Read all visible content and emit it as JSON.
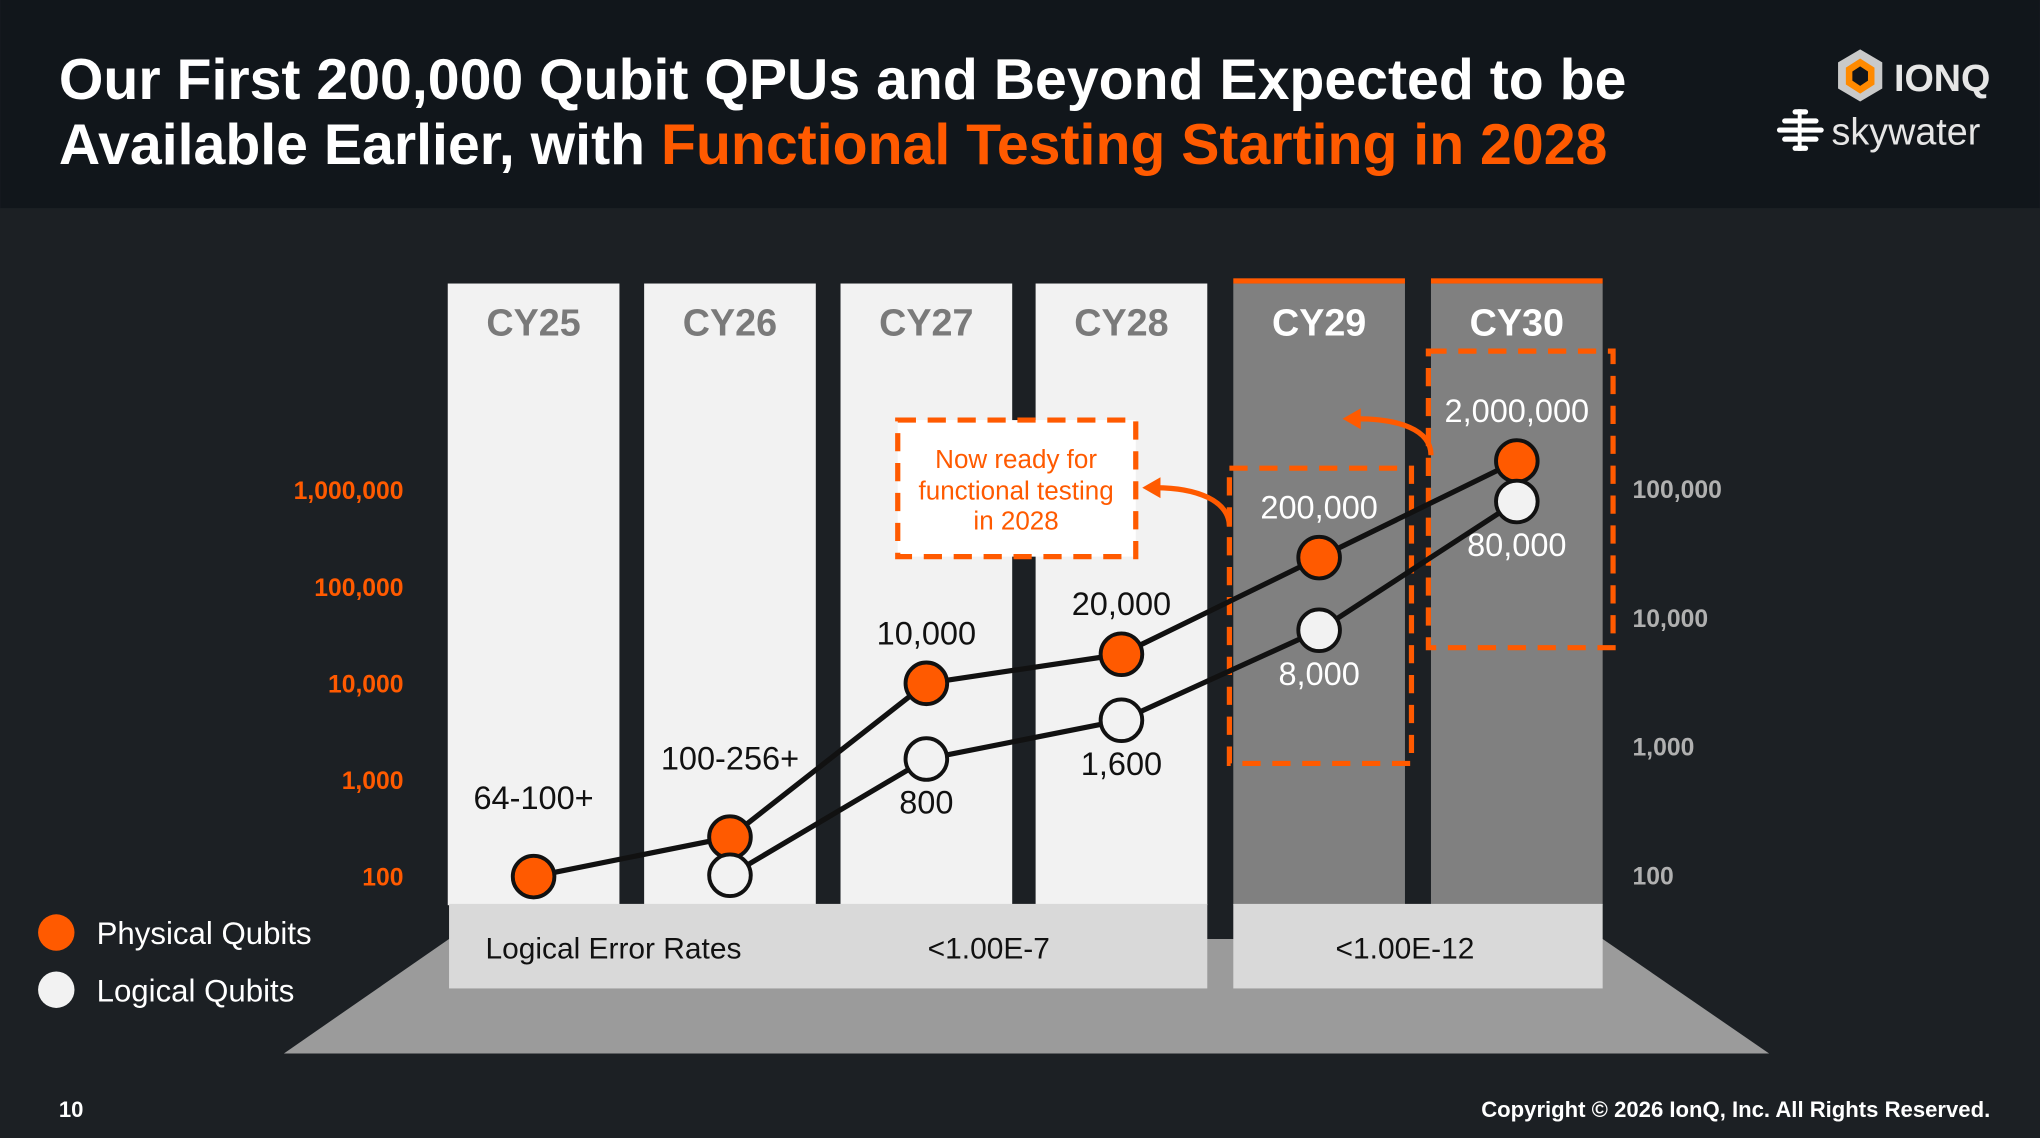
{
  "header": {
    "title_line1": "Our First 200,000 Qubit QPUs and Beyond Expected to be",
    "title_line2_plain": "Available Earlier, with ",
    "title_line2_highlight": "Functional Testing Starting in 2028",
    "logos": {
      "ionq": "IONQ",
      "skywater": "skywater"
    }
  },
  "colors": {
    "accent": "#ff5a00",
    "header_bg": "#11161b",
    "body_bg": "#1c2024",
    "column_light": "#f2f2f2",
    "column_dark": "#808080"
  },
  "chart_data": {
    "type": "line",
    "categories": [
      "CY25",
      "CY26",
      "CY27",
      "CY28",
      "CY29",
      "CY30"
    ],
    "left_axis": {
      "scale": "log",
      "ticks": [
        "100",
        "1,000",
        "10,000",
        "100,000",
        "1,000,000"
      ],
      "tick_values": [
        100,
        1000,
        10000,
        100000,
        1000000
      ]
    },
    "right_axis": {
      "scale": "log",
      "ticks": [
        "100",
        "1,000",
        "10,000",
        "100,000"
      ],
      "tick_values": [
        100,
        1000,
        10000,
        100000
      ]
    },
    "series": [
      {
        "name": "Physical Qubits",
        "color": "#ff5a00",
        "axis": "left",
        "values": [
          100,
          256,
          10000,
          20000,
          200000,
          2000000
        ],
        "labels": [
          "64-100+",
          "100-256+",
          "10,000",
          "20,000",
          "200,000",
          "2,000,000"
        ]
      },
      {
        "name": "Logical Qubits",
        "color": "#f2f2f2",
        "axis": "right",
        "values": [
          null,
          100,
          800,
          1600,
          8000,
          80000
        ],
        "labels": [
          "",
          "",
          "800",
          "1,600",
          "8,000",
          "80,000"
        ]
      }
    ],
    "annotation": "Now ready for functional testing in 2028",
    "error_rates": {
      "label": "Logical Error Rates",
      "cy25_28": "<1.00E-7",
      "cy29_30": "<1.00E-12"
    },
    "legend_position": "bottom-left"
  },
  "footer": {
    "page_number": "10",
    "copyright": "Copyright © 2026 IonQ, Inc. All Rights Reserved."
  }
}
